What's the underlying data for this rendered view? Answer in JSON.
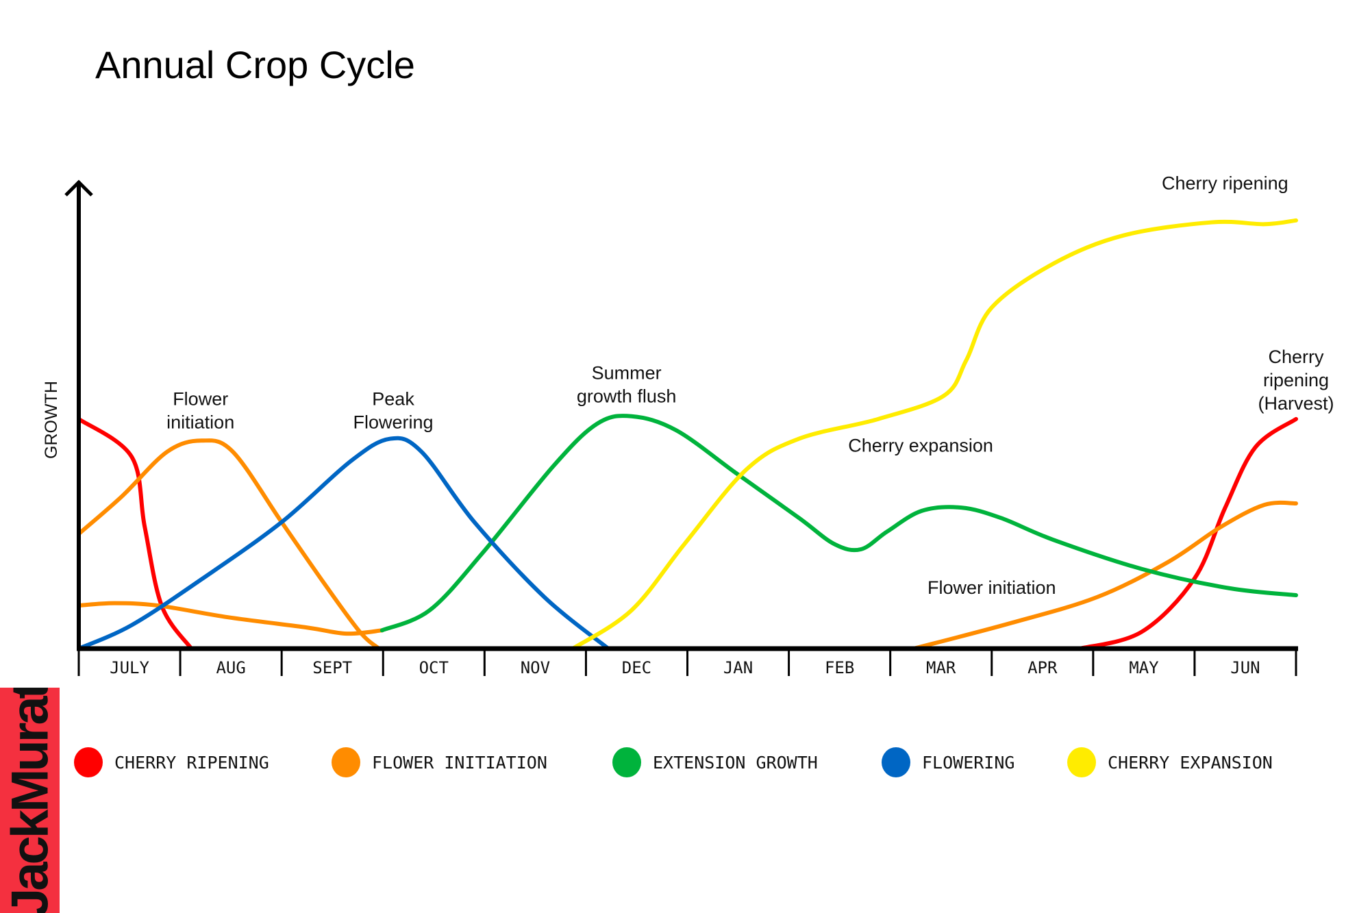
{
  "title": "Annual Crop Cycle",
  "logo_text": "JackMurat",
  "chart_data": {
    "type": "line",
    "title": "Annual Crop Cycle",
    "ylabel": "GROWTH",
    "xlabel": "",
    "categories": [
      "JULY",
      "AUG",
      "SEPT",
      "OCT",
      "NOV",
      "DEC",
      "JAN",
      "FEB",
      "MAR",
      "APR",
      "MAY",
      "JUN"
    ],
    "xlim": [
      0,
      12
    ],
    "ylim": [
      0,
      100
    ],
    "grid": false,
    "legend_placement": "bottom",
    "series": [
      {
        "name": "CHERRY RIPENING",
        "color": "#ff0000",
        "segments": [
          [
            [
              0,
              49
            ],
            [
              0.52,
              41
            ],
            [
              0.65,
              26
            ],
            [
              0.82,
              9
            ],
            [
              1.11,
              0
            ]
          ],
          [
            [
              9.87,
              0
            ],
            [
              10.48,
              3.6
            ],
            [
              11,
              15
            ],
            [
              11.3,
              30
            ],
            [
              11.6,
              43
            ],
            [
              12,
              49
            ]
          ]
        ]
      },
      {
        "name": "FLOWER INITIATION",
        "color": "#ff8c00",
        "segments": [
          [
            [
              0,
              24.5
            ],
            [
              0.43,
              32.6
            ],
            [
              0.87,
              42
            ],
            [
              1.21,
              44.4
            ],
            [
              1.52,
              42
            ],
            [
              2,
              27
            ],
            [
              2.42,
              13.9
            ],
            [
              2.77,
              3.6
            ],
            [
              2.96,
              0
            ]
          ],
          [
            [
              0,
              9.2
            ],
            [
              0.35,
              9.7
            ],
            [
              0.78,
              9.2
            ],
            [
              1.47,
              6.7
            ],
            [
              2.25,
              4.5
            ],
            [
              2.64,
              3.2
            ],
            [
              2.99,
              3.9
            ]
          ],
          [
            [
              8.23,
              0
            ],
            [
              9.18,
              5.4
            ],
            [
              10.04,
              11
            ],
            [
              10.74,
              18.5
            ],
            [
              11.26,
              26
            ],
            [
              11.69,
              30.7
            ],
            [
              12,
              31
            ]
          ]
        ]
      },
      {
        "name": "EXTENSION GROWTH",
        "color": "#00b33c",
        "segments": [
          [
            [
              2.99,
              3.9
            ],
            [
              3.46,
              8.2
            ],
            [
              3.98,
              20.4
            ],
            [
              4.68,
              39
            ],
            [
              5.11,
              48
            ],
            [
              5.45,
              49.6
            ],
            [
              5.89,
              46.6
            ],
            [
              6.49,
              37.3
            ],
            [
              7.1,
              27.9
            ],
            [
              7.45,
              22.3
            ],
            [
              7.71,
              21.2
            ],
            [
              7.97,
              25
            ],
            [
              8.31,
              29.4
            ],
            [
              8.7,
              30.1
            ],
            [
              9.09,
              27.9
            ],
            [
              9.61,
              23.2
            ],
            [
              10.48,
              17
            ],
            [
              11.34,
              12.9
            ],
            [
              12,
              11.4
            ]
          ]
        ]
      },
      {
        "name": "FLOWERING",
        "color": "#0066c4",
        "segments": [
          [
            [
              0,
              0
            ],
            [
              0.52,
              5
            ],
            [
              1.21,
              14.8
            ],
            [
              2,
              27
            ],
            [
              2.68,
              40
            ],
            [
              3.07,
              44.8
            ],
            [
              3.38,
              42
            ],
            [
              3.9,
              27
            ],
            [
              4.59,
              11
            ],
            [
              5.22,
              0
            ]
          ]
        ]
      },
      {
        "name": "CHERRY EXPANSION",
        "color": "#ffec00",
        "segments": [
          [
            [
              4.87,
              0
            ],
            [
              5.45,
              8.2
            ],
            [
              5.97,
              22.3
            ],
            [
              6.58,
              38.2
            ],
            [
              7.1,
              44.8
            ],
            [
              7.88,
              49
            ],
            [
              8.53,
              54
            ],
            [
              8.75,
              61.6
            ],
            [
              9.0,
              72.8
            ],
            [
              9.61,
              82.2
            ],
            [
              10.3,
              88.2
            ],
            [
              11.17,
              91
            ],
            [
              11.69,
              90.6
            ],
            [
              12,
              91.4
            ]
          ]
        ]
      }
    ],
    "annotations": [
      {
        "lines": [
          "Flower",
          "initiation"
        ],
        "x": 1.2,
        "y": 52
      },
      {
        "lines": [
          "Peak",
          "Flowering"
        ],
        "x": 3.1,
        "y": 52
      },
      {
        "lines": [
          "Summer",
          "growth flush"
        ],
        "x": 5.4,
        "y": 57.5
      },
      {
        "lines": [
          "Cherry expansion"
        ],
        "x": 8.3,
        "y": 42
      },
      {
        "lines": [
          "Flower initiation"
        ],
        "x": 9.0,
        "y": 11.7
      },
      {
        "lines": [
          "Cherry ripening"
        ],
        "x": 11.3,
        "y": 98
      },
      {
        "lines": [
          "Cherry",
          "ripening",
          "(Harvest)"
        ],
        "x": 12,
        "y": 61
      }
    ]
  }
}
